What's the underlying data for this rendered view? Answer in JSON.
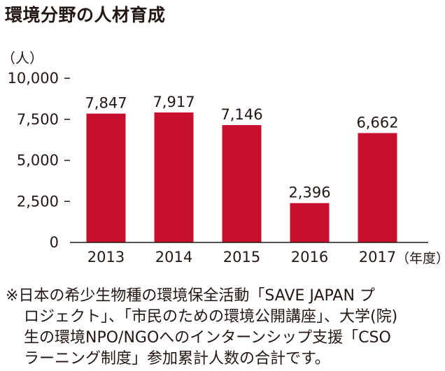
{
  "title": "環境分野の人材育成",
  "chart_data": {
    "type": "bar",
    "title": "",
    "ylabel": "（人）",
    "xlabel": "（年度）",
    "categories": [
      "2013",
      "2014",
      "2015",
      "2016",
      "2017"
    ],
    "values": [
      7847,
      7917,
      7146,
      2396,
      6662
    ],
    "value_labels": [
      "7,847",
      "7,917",
      "7,146",
      "2,396",
      "6,662"
    ],
    "ylim": [
      0,
      10000
    ],
    "yticks": [
      0,
      2500,
      5000,
      7500,
      10000
    ],
    "ytick_labels": [
      "0",
      "2,500",
      "5,000",
      "7,500",
      "10,000"
    ],
    "bar_color": "#c8102e",
    "grid": false
  },
  "footnote": {
    "lines": [
      "※日本の希少生物種の環境保全活動「SAVE JAPAN プ",
      "ロジェクト」、「市民のための環境公開講座」、大学(院)",
      "生の環境NPO/NGOへのインターンシップ支援「CSO",
      "ラーニング制度」参加累計人数の合計です。"
    ]
  }
}
